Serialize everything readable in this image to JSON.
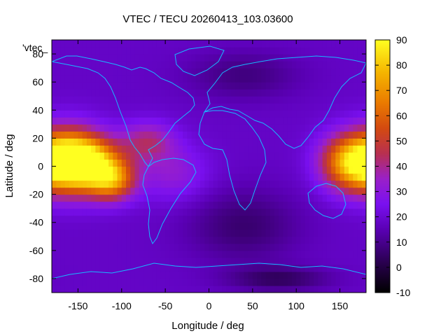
{
  "chart_data": {
    "type": "heatmap",
    "title": "VTEC / TECU 20260413_103.03600",
    "xlabel": "Longitude / deg",
    "ylabel": "Latitude / deg",
    "xlim": [
      -180,
      180
    ],
    "ylim": [
      -90,
      90
    ],
    "xticks": [
      -150,
      -100,
      -50,
      0,
      50,
      100,
      150
    ],
    "yticks": [
      -80,
      -60,
      -40,
      -20,
      0,
      20,
      40,
      60,
      80
    ],
    "colorbar": {
      "range": [
        -10,
        90
      ],
      "ticks": [
        -10,
        0,
        10,
        20,
        30,
        40,
        50,
        60,
        70,
        80,
        90
      ]
    },
    "key_label": "'vtec_",
    "background_level": 18,
    "features": [
      {
        "lon": -140,
        "lat": 2,
        "peak": 78,
        "sx": 28,
        "sy": 13
      },
      {
        "lon": -160,
        "lat": 5,
        "peak": 65,
        "sx": 26,
        "sy": 16
      },
      {
        "lon": 162,
        "lat": 3,
        "peak": 72,
        "sx": 24,
        "sy": 14
      },
      {
        "lon": -110,
        "lat": -10,
        "peak": 58,
        "sx": 18,
        "sy": 10
      },
      {
        "lon": -70,
        "lat": 18,
        "peak": 40,
        "sx": 22,
        "sy": 10
      },
      {
        "lon": -40,
        "lat": -5,
        "peak": 32,
        "sx": 28,
        "sy": 14
      },
      {
        "lon": 40,
        "lat": -42,
        "peak": 6,
        "sx": 45,
        "sy": 18
      },
      {
        "lon": 80,
        "lat": -80,
        "peak": 4,
        "sx": 40,
        "sy": 6
      },
      {
        "lon": 40,
        "lat": 65,
        "peak": 8,
        "sx": 45,
        "sy": 12
      }
    ]
  }
}
